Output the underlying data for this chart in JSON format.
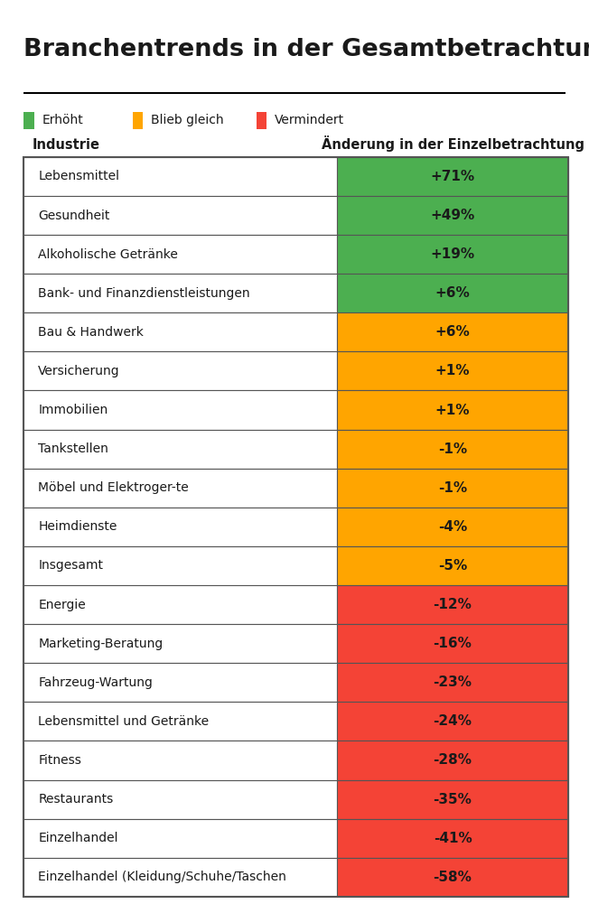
{
  "title": "Branchentrends in der Gesamtbetrachtung",
  "col1_header": "Industrie",
  "col2_header": "Änderung in der Einzelbetrachtung",
  "legend": [
    {
      "label": "Erhöht",
      "color": "#4caf50"
    },
    {
      "label": "Blieb gleich",
      "color": "#ffa500"
    },
    {
      "label": "Vermindert",
      "color": "#f44336"
    }
  ],
  "rows": [
    {
      "industry": "Lebensmittel",
      "change": "+71%",
      "color": "#4caf50"
    },
    {
      "industry": "Gesundheit",
      "change": "+49%",
      "color": "#4caf50"
    },
    {
      "industry": "Alkoholische Getränke",
      "change": "+19%",
      "color": "#4caf50"
    },
    {
      "industry": "Bank- und Finanzdienstleistungen",
      "change": "+6%",
      "color": "#4caf50"
    },
    {
      "industry": "Bau & Handwerk",
      "change": "+6%",
      "color": "#ffa500"
    },
    {
      "industry": "Versicherung",
      "change": "+1%",
      "color": "#ffa500"
    },
    {
      "industry": "Immobilien",
      "change": "+1%",
      "color": "#ffa500"
    },
    {
      "industry": "Tankstellen",
      "change": "-1%",
      "color": "#ffa500"
    },
    {
      "industry": "Möbel und Elektroger-te",
      "change": "-1%",
      "color": "#ffa500"
    },
    {
      "industry": "Heimdienste",
      "change": "-4%",
      "color": "#ffa500"
    },
    {
      "industry": "Insgesamt",
      "change": "-5%",
      "color": "#ffa500"
    },
    {
      "industry": "Energie",
      "change": "-12%",
      "color": "#f44336"
    },
    {
      "industry": "Marketing-Beratung",
      "change": "-16%",
      "color": "#f44336"
    },
    {
      "industry": "Fahrzeug-Wartung",
      "change": "-23%",
      "color": "#f44336"
    },
    {
      "industry": "Lebensmittel und Getränke",
      "change": "-24%",
      "color": "#f44336"
    },
    {
      "industry": "Fitness",
      "change": "-28%",
      "color": "#f44336"
    },
    {
      "industry": "Restaurants",
      "change": "-35%",
      "color": "#f44336"
    },
    {
      "industry": "Einzelhandel",
      "change": "-41%",
      "color": "#f44336"
    },
    {
      "industry": "Einzelhandel (Kleidung/Schuhe/Taschen",
      "change": "-58%",
      "color": "#f44336"
    }
  ],
  "background_color": "#ffffff",
  "text_color": "#1a1a1a",
  "border_color": "#555555",
  "col_split": 0.575
}
